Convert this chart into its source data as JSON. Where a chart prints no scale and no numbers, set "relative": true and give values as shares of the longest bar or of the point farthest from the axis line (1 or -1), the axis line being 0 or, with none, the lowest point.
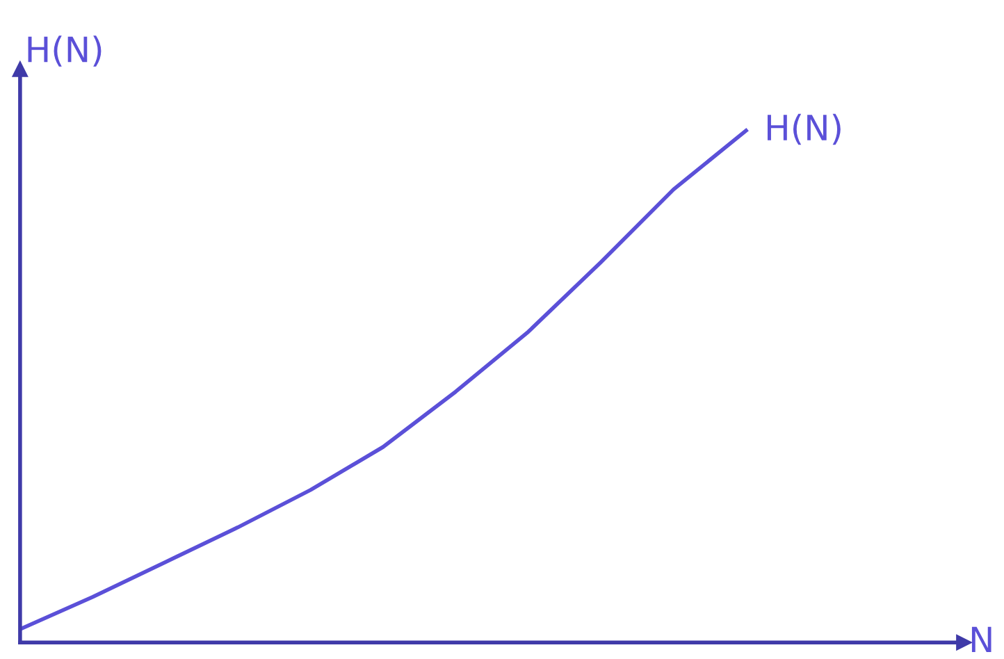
{
  "chart_data": {
    "type": "line",
    "relative": true,
    "xlabel": "N",
    "ylabel": "H(N)",
    "categories": [
      null,
      null,
      null,
      null,
      null,
      null,
      null,
      null,
      null,
      null,
      null,
      null,
      null,
      null
    ],
    "series": [
      {
        "name": "H(N)",
        "color": "#5b50d8",
        "values": [
          0.026,
          0.089,
          0.157,
          0.225,
          0.298,
          0.382,
          0.49,
          0.607,
          0.743,
          0.885,
          1.0,
          null,
          null,
          null
        ]
      }
    ],
    "legend": false,
    "marker": "none",
    "line_style": "solid"
  }
}
